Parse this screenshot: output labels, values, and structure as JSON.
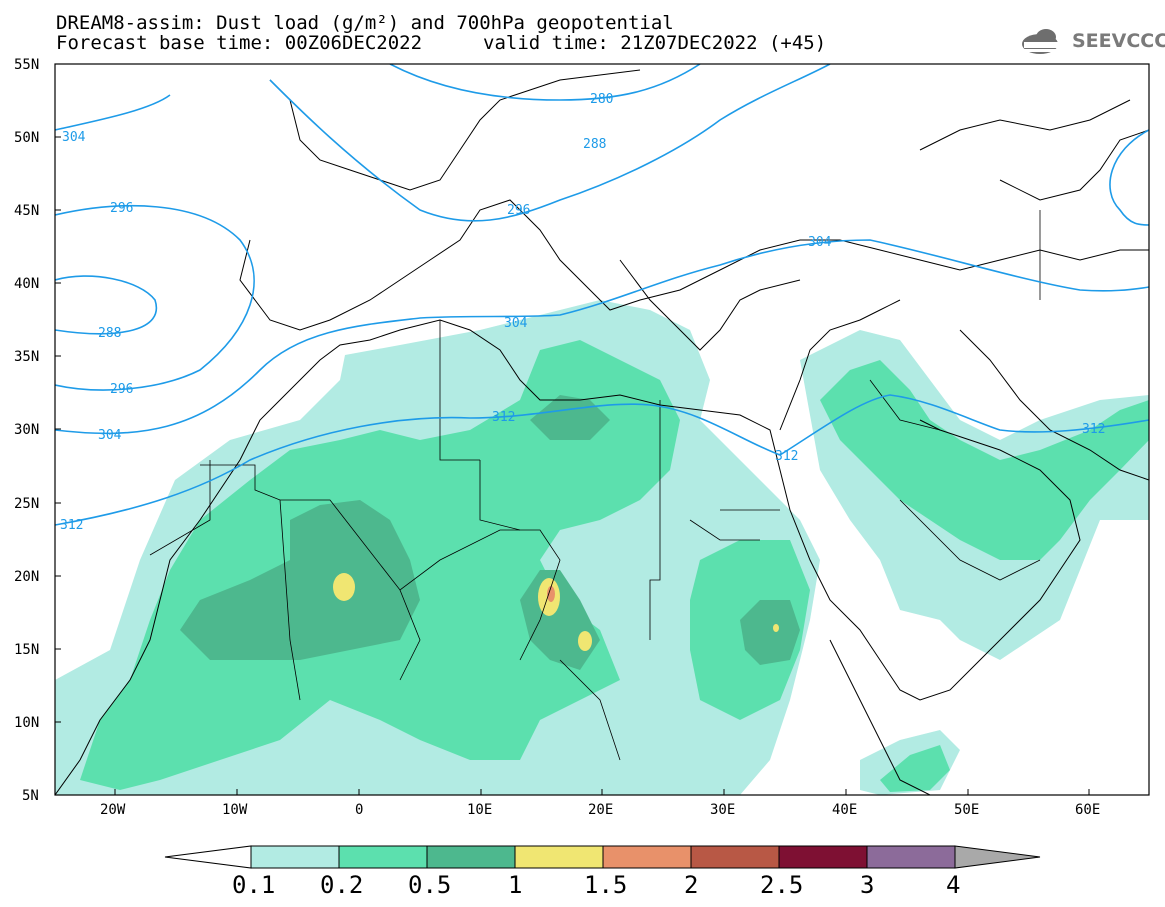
{
  "header": {
    "title_line1": "DREAM8-assim: Dust load (g/m²) and 700hPa geopotential",
    "title_line2": "Forecast base time: 00Z06DEC2022",
    "valid_time": "valid time: 21Z07DEC2022 (+45)",
    "logo_text": "SEEVCCC"
  },
  "map": {
    "lat_labels": [
      "55N",
      "50N",
      "45N",
      "40N",
      "35N",
      "30N",
      "25N",
      "20N",
      "15N",
      "10N",
      "5N"
    ],
    "lon_labels": [
      "20W",
      "10W",
      "0",
      "10E",
      "20E",
      "30E",
      "40E",
      "50E",
      "60E"
    ],
    "contour_labels": [
      "280",
      "288",
      "304",
      "296",
      "288",
      "296",
      "304",
      "312",
      "304",
      "304",
      "312",
      "312",
      "312",
      "296"
    ],
    "colors": {
      "contour": "#1e9be8",
      "level_0_1": "#b2ebe3",
      "level_0_2": "#5ce0ae",
      "level_0_5": "#4db88e",
      "level_1": "#f0e672",
      "level_1_5": "#e8916a",
      "level_2": "#b85845",
      "level_2_5": "#7e1033",
      "level_3": "#8c6b9a",
      "level_4": "#a9a9a9"
    }
  },
  "colorbar": {
    "labels": [
      "0.1",
      "0.2",
      "0.5",
      "1",
      "1.5",
      "2",
      "2.5",
      "3",
      "4"
    ]
  }
}
